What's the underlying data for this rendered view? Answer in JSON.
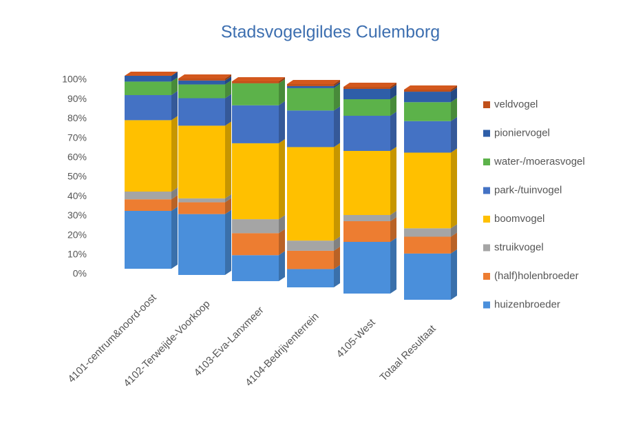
{
  "chart_data": {
    "type": "bar",
    "stacked": true,
    "title": "Stadsvogelgildes Culemborg",
    "categories": [
      "4101-centrum&noord-oost",
      "4102-Terweijde-Voorkoop",
      "4103-Eva-Lanxmeer",
      "4104-Bedrijventerrein",
      "4105-West",
      "Totaal Resultaat"
    ],
    "series": [
      {
        "name": "huizenbroeder",
        "color": "#4a8fdb",
        "values": [
          30,
          31,
          13,
          9,
          25,
          22
        ]
      },
      {
        "name": "(half)holenbroeder",
        "color": "#ed7d31",
        "values": [
          6,
          6,
          11,
          9,
          10,
          8
        ]
      },
      {
        "name": "struikvogel",
        "color": "#a5a5a5",
        "values": [
          4,
          2,
          7,
          5,
          3,
          4
        ]
      },
      {
        "name": "boomvogel",
        "color": "#ffc000",
        "values": [
          37,
          37,
          38,
          46,
          31,
          36
        ]
      },
      {
        "name": "park-/tuinvogel",
        "color": "#4472c4",
        "values": [
          13,
          14,
          19,
          18,
          17,
          15
        ]
      },
      {
        "name": "water-/moerasvogel",
        "color": "#5cb24a",
        "values": [
          7,
          7,
          11,
          11,
          8,
          9
        ]
      },
      {
        "name": "pioniervogel",
        "color": "#2e5ea8",
        "values": [
          3,
          2,
          0,
          1,
          5,
          5
        ]
      },
      {
        "name": "veldvogel",
        "color": "#c0501a",
        "values": [
          0,
          1,
          1,
          1,
          1,
          1
        ]
      }
    ],
    "ylim": [
      0,
      100
    ],
    "yticks": [
      {
        "value": 0,
        "label": "0%"
      },
      {
        "value": 10,
        "label": "10%"
      },
      {
        "value": 20,
        "label": "20%"
      },
      {
        "value": 30,
        "label": "30%"
      },
      {
        "value": 40,
        "label": "40%"
      },
      {
        "value": 50,
        "label": "50%"
      },
      {
        "value": 60,
        "label": "60%"
      },
      {
        "value": 70,
        "label": "70%"
      },
      {
        "value": 80,
        "label": "80%"
      },
      {
        "value": 90,
        "label": "90%"
      },
      {
        "value": 100,
        "label": "100%"
      }
    ],
    "legend": "right"
  }
}
